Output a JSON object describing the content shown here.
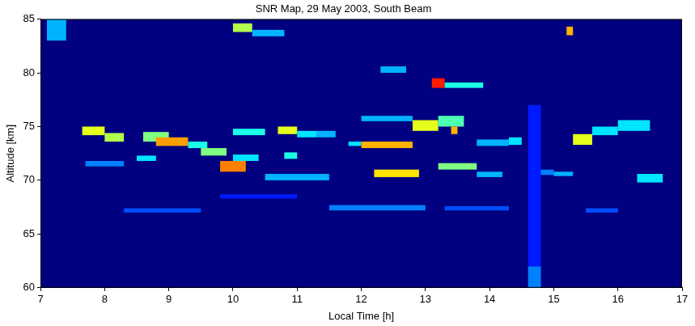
{
  "chart_data": {
    "type": "heatmap",
    "title": "SNR Map, 29 May 2003, South Beam",
    "x_label": "Local Time [h]",
    "y_label": "Altitude [km]",
    "xlim": [
      7,
      17
    ],
    "xticks": [
      7,
      8,
      9,
      10,
      11,
      12,
      13,
      14,
      15,
      16,
      17
    ],
    "ylim": [
      60,
      85
    ],
    "yticks": [
      60,
      65,
      70,
      75,
      80,
      85
    ],
    "grid": false,
    "color_range": [
      0,
      1
    ],
    "cells": [
      {
        "t": [
          7.65,
          8.0
        ],
        "alt": [
          74.2,
          75.0
        ],
        "snr": 0.6
      },
      {
        "t": [
          8.0,
          8.3
        ],
        "alt": [
          73.6,
          74.4
        ],
        "snr": 0.55
      },
      {
        "t": [
          7.7,
          8.3
        ],
        "alt": [
          71.3,
          71.8
        ],
        "snr": 0.25
      },
      {
        "t": [
          8.5,
          8.8
        ],
        "alt": [
          71.8,
          72.3
        ],
        "snr": 0.35
      },
      {
        "t": [
          8.6,
          9.0
        ],
        "alt": [
          73.6,
          74.5
        ],
        "snr": 0.5
      },
      {
        "t": [
          8.8,
          9.3
        ],
        "alt": [
          73.2,
          74.0
        ],
        "snr": 0.72
      },
      {
        "t": [
          9.3,
          9.6
        ],
        "alt": [
          73.0,
          73.6
        ],
        "snr": 0.4
      },
      {
        "t": [
          9.5,
          9.9
        ],
        "alt": [
          72.3,
          73.0
        ],
        "snr": 0.5
      },
      {
        "t": [
          9.8,
          10.2
        ],
        "alt": [
          70.8,
          71.8
        ],
        "snr": 0.75
      },
      {
        "t": [
          10.0,
          10.4
        ],
        "alt": [
          71.8,
          72.4
        ],
        "snr": 0.35
      },
      {
        "t": [
          10.0,
          10.5
        ],
        "alt": [
          74.2,
          74.8
        ],
        "snr": 0.4
      },
      {
        "t": [
          10.7,
          11.0
        ],
        "alt": [
          74.3,
          75.0
        ],
        "snr": 0.6
      },
      {
        "t": [
          11.0,
          11.3
        ],
        "alt": [
          74.0,
          74.6
        ],
        "snr": 0.35
      },
      {
        "t": [
          11.3,
          11.6
        ],
        "alt": [
          74.0,
          74.6
        ],
        "snr": 0.3
      },
      {
        "t": [
          10.0,
          10.3
        ],
        "alt": [
          83.8,
          84.6
        ],
        "snr": 0.55
      },
      {
        "t": [
          10.3,
          10.8
        ],
        "alt": [
          83.4,
          84.0
        ],
        "snr": 0.3
      },
      {
        "t": [
          10.8,
          11.0
        ],
        "alt": [
          72.0,
          72.6
        ],
        "snr": 0.4
      },
      {
        "t": [
          10.5,
          11.5
        ],
        "alt": [
          70.0,
          70.6
        ],
        "snr": 0.3
      },
      {
        "t": [
          11.8,
          12.0
        ],
        "alt": [
          73.2,
          73.6
        ],
        "snr": 0.35
      },
      {
        "t": [
          12.0,
          12.8
        ],
        "alt": [
          73.0,
          73.6
        ],
        "snr": 0.7
      },
      {
        "t": [
          12.2,
          12.9
        ],
        "alt": [
          70.3,
          71.0
        ],
        "snr": 0.65
      },
      {
        "t": [
          12.0,
          12.8
        ],
        "alt": [
          75.5,
          76.0
        ],
        "snr": 0.3
      },
      {
        "t": [
          12.8,
          13.2
        ],
        "alt": [
          74.6,
          75.6
        ],
        "snr": 0.6
      },
      {
        "t": [
          13.2,
          13.6
        ],
        "alt": [
          75.0,
          76.0
        ],
        "snr": 0.45
      },
      {
        "t": [
          13.4,
          13.5
        ],
        "alt": [
          74.3,
          75.0
        ],
        "snr": 0.7
      },
      {
        "t": [
          13.1,
          13.3
        ],
        "alt": [
          78.6,
          79.5
        ],
        "snr": 0.85
      },
      {
        "t": [
          13.3,
          13.9
        ],
        "alt": [
          78.6,
          79.1
        ],
        "snr": 0.4
      },
      {
        "t": [
          12.3,
          12.7
        ],
        "alt": [
          80.0,
          80.6
        ],
        "snr": 0.3
      },
      {
        "t": [
          13.2,
          13.8
        ],
        "alt": [
          71.0,
          71.6
        ],
        "snr": 0.5
      },
      {
        "t": [
          13.8,
          14.2
        ],
        "alt": [
          70.3,
          70.8
        ],
        "snr": 0.3
      },
      {
        "t": [
          13.8,
          14.3
        ],
        "alt": [
          73.2,
          73.8
        ],
        "snr": 0.3
      },
      {
        "t": [
          14.3,
          14.5
        ],
        "alt": [
          73.3,
          74.0
        ],
        "snr": 0.35
      },
      {
        "t": [
          15.2,
          15.3
        ],
        "alt": [
          83.5,
          84.3
        ],
        "snr": 0.7
      },
      {
        "t": [
          15.3,
          15.6
        ],
        "alt": [
          73.3,
          74.3
        ],
        "snr": 0.6
      },
      {
        "t": [
          15.6,
          16.0
        ],
        "alt": [
          74.2,
          75.0
        ],
        "snr": 0.35
      },
      {
        "t": [
          16.0,
          16.5
        ],
        "alt": [
          74.6,
          75.6
        ],
        "snr": 0.35
      },
      {
        "t": [
          14.7,
          15.0
        ],
        "alt": [
          70.5,
          71.0
        ],
        "snr": 0.25
      },
      {
        "t": [
          15.0,
          15.3
        ],
        "alt": [
          70.4,
          70.8
        ],
        "snr": 0.3
      },
      {
        "t": [
          16.3,
          16.7
        ],
        "alt": [
          69.8,
          70.6
        ],
        "snr": 0.35
      },
      {
        "t": [
          8.3,
          9.5
        ],
        "alt": [
          67.0,
          67.4
        ],
        "snr": 0.2
      },
      {
        "t": [
          11.5,
          13.0
        ],
        "alt": [
          67.2,
          67.7
        ],
        "snr": 0.25
      },
      {
        "t": [
          13.3,
          14.3
        ],
        "alt": [
          67.2,
          67.6
        ],
        "snr": 0.2
      },
      {
        "t": [
          15.5,
          16.0
        ],
        "alt": [
          67.0,
          67.4
        ],
        "snr": 0.2
      },
      {
        "t": [
          9.8,
          11.0
        ],
        "alt": [
          68.3,
          68.7
        ],
        "snr": 0.15
      },
      {
        "t": [
          14.6,
          14.8
        ],
        "alt": [
          60.0,
          62.0
        ],
        "snr": 0.25
      },
      {
        "t": [
          14.6,
          14.8
        ],
        "alt": [
          62.0,
          77.0
        ],
        "snr": 0.15
      },
      {
        "t": [
          7.1,
          7.4
        ],
        "alt": [
          83.0,
          85.0
        ],
        "snr": 0.3
      }
    ]
  }
}
